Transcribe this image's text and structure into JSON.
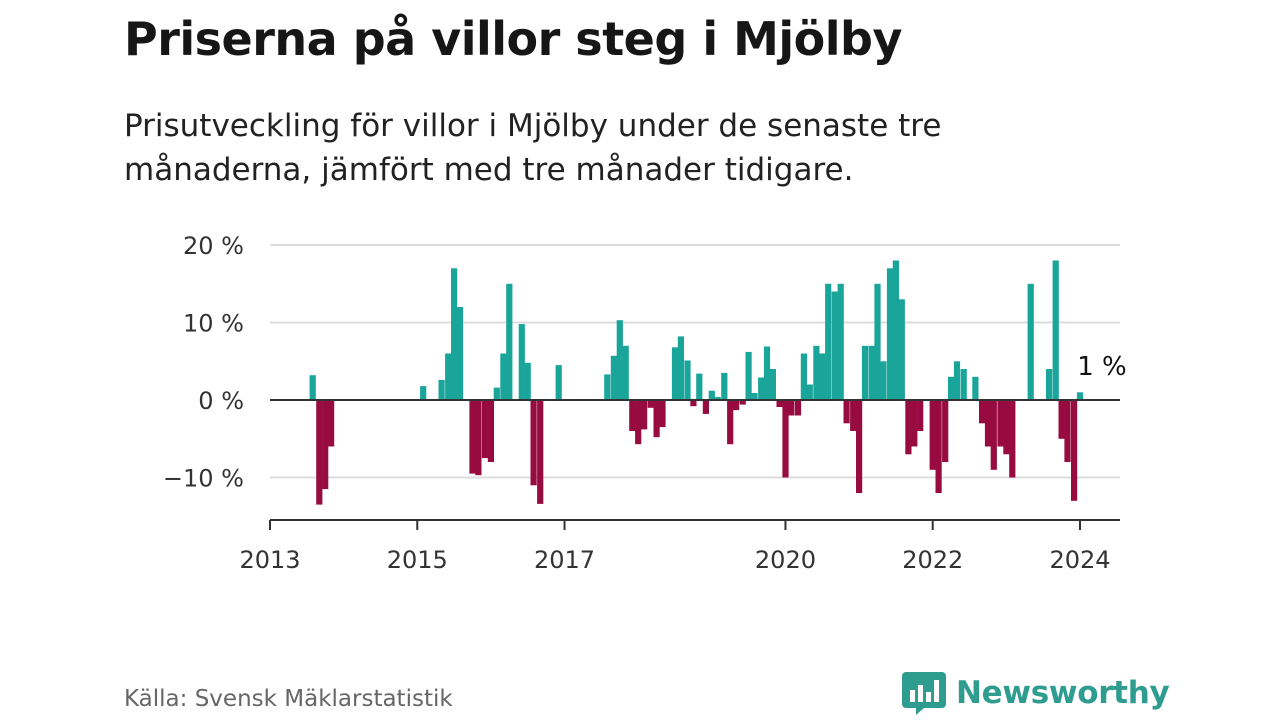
{
  "title": "Priserna på villor steg i Mjölby",
  "subtitle": "Prisutveckling för villor i Mjölby under de senaste tre månaderna, jämfört med tre månader tidigare.",
  "source": "Källa: Svensk Mäklarstatistik",
  "brand": {
    "name": "Newsworthy",
    "logo_icon": "newsworthy-bar-chart-icon"
  },
  "colors": {
    "positive": "#1aa59a",
    "negative": "#980b40",
    "gridline": "#dcdcdc",
    "axis": "#333333",
    "brand": "#2f9c90"
  },
  "chart_data": {
    "type": "bar",
    "title": "Priserna på villor steg i Mjölby",
    "ylabel": "",
    "xlabel": "",
    "ylim": [
      -15,
      20
    ],
    "xlim": [
      2013,
      2024.3
    ],
    "y_ticks": [
      20,
      10,
      0,
      -10
    ],
    "y_tick_labels": [
      "20 %",
      "10 %",
      "0 %",
      "−10 %"
    ],
    "x_ticks": [
      2013,
      2015,
      2017,
      2020,
      2022,
      2024
    ],
    "x_tick_labels": [
      "2013",
      "2015",
      "2017",
      "2020",
      "2022",
      "2024"
    ],
    "annotation": {
      "text": "1 %",
      "x": 2024.0,
      "value": 1
    },
    "bars": [
      {
        "x": 2013.58,
        "value": 3.2
      },
      {
        "x": 2013.67,
        "value": -13.5
      },
      {
        "x": 2013.75,
        "value": -11.5
      },
      {
        "x": 2013.83,
        "value": -6.0
      },
      {
        "x": 2015.08,
        "value": 1.8
      },
      {
        "x": 2015.33,
        "value": 2.6
      },
      {
        "x": 2015.42,
        "value": 6.0
      },
      {
        "x": 2015.5,
        "value": 17.0
      },
      {
        "x": 2015.58,
        "value": 12.0
      },
      {
        "x": 2015.75,
        "value": -9.5
      },
      {
        "x": 2015.83,
        "value": -9.7
      },
      {
        "x": 2015.92,
        "value": -7.5
      },
      {
        "x": 2016.0,
        "value": -8.0
      },
      {
        "x": 2016.08,
        "value": 1.6
      },
      {
        "x": 2016.17,
        "value": 6.0
      },
      {
        "x": 2016.25,
        "value": 15.0
      },
      {
        "x": 2016.42,
        "value": 9.8
      },
      {
        "x": 2016.5,
        "value": 4.8
      },
      {
        "x": 2016.58,
        "value": -11.0
      },
      {
        "x": 2016.67,
        "value": -13.4
      },
      {
        "x": 2016.92,
        "value": 4.5
      },
      {
        "x": 2017.58,
        "value": 3.3
      },
      {
        "x": 2017.67,
        "value": 5.7
      },
      {
        "x": 2017.75,
        "value": 10.3
      },
      {
        "x": 2017.83,
        "value": 7.0
      },
      {
        "x": 2017.92,
        "value": -4.0
      },
      {
        "x": 2018.0,
        "value": -5.7
      },
      {
        "x": 2018.08,
        "value": -3.8
      },
      {
        "x": 2018.17,
        "value": -1.0
      },
      {
        "x": 2018.25,
        "value": -4.8
      },
      {
        "x": 2018.33,
        "value": -3.5
      },
      {
        "x": 2018.5,
        "value": 6.8
      },
      {
        "x": 2018.58,
        "value": 8.2
      },
      {
        "x": 2018.67,
        "value": 5.1
      },
      {
        "x": 2018.75,
        "value": -0.8
      },
      {
        "x": 2018.83,
        "value": 3.4
      },
      {
        "x": 2018.92,
        "value": -1.8
      },
      {
        "x": 2019.0,
        "value": 1.2
      },
      {
        "x": 2019.08,
        "value": 0.4
      },
      {
        "x": 2019.17,
        "value": 3.5
      },
      {
        "x": 2019.25,
        "value": -5.7
      },
      {
        "x": 2019.33,
        "value": -1.3
      },
      {
        "x": 2019.42,
        "value": -0.6
      },
      {
        "x": 2019.5,
        "value": 6.2
      },
      {
        "x": 2019.58,
        "value": 0.9
      },
      {
        "x": 2019.67,
        "value": 2.9
      },
      {
        "x": 2019.75,
        "value": 6.9
      },
      {
        "x": 2019.83,
        "value": 4.0
      },
      {
        "x": 2019.92,
        "value": -0.9
      },
      {
        "x": 2020.0,
        "value": -10.0
      },
      {
        "x": 2020.08,
        "value": -2.0
      },
      {
        "x": 2020.17,
        "value": -2.0
      },
      {
        "x": 2020.25,
        "value": 6.0
      },
      {
        "x": 2020.33,
        "value": 2.0
      },
      {
        "x": 2020.42,
        "value": 7.0
      },
      {
        "x": 2020.5,
        "value": 6.0
      },
      {
        "x": 2020.58,
        "value": 15.0
      },
      {
        "x": 2020.67,
        "value": 14.0
      },
      {
        "x": 2020.75,
        "value": 15.0
      },
      {
        "x": 2020.83,
        "value": -3.0
      },
      {
        "x": 2020.92,
        "value": -4.0
      },
      {
        "x": 2021.0,
        "value": -12.0
      },
      {
        "x": 2021.08,
        "value": 7.0
      },
      {
        "x": 2021.17,
        "value": 7.0
      },
      {
        "x": 2021.25,
        "value": 15.0
      },
      {
        "x": 2021.33,
        "value": 5.0
      },
      {
        "x": 2021.42,
        "value": 17.0
      },
      {
        "x": 2021.5,
        "value": 18.0
      },
      {
        "x": 2021.58,
        "value": 13.0
      },
      {
        "x": 2021.67,
        "value": -7.0
      },
      {
        "x": 2021.75,
        "value": -6.0
      },
      {
        "x": 2021.83,
        "value": -4.0
      },
      {
        "x": 2022.0,
        "value": -9.0
      },
      {
        "x": 2022.08,
        "value": -12.0
      },
      {
        "x": 2022.17,
        "value": -8.0
      },
      {
        "x": 2022.25,
        "value": 3.0
      },
      {
        "x": 2022.33,
        "value": 5.0
      },
      {
        "x": 2022.42,
        "value": 4.0
      },
      {
        "x": 2022.58,
        "value": 3.0
      },
      {
        "x": 2022.67,
        "value": -3.0
      },
      {
        "x": 2022.75,
        "value": -6.0
      },
      {
        "x": 2022.83,
        "value": -9.0
      },
      {
        "x": 2022.92,
        "value": -6.0
      },
      {
        "x": 2023.0,
        "value": -7.0
      },
      {
        "x": 2023.08,
        "value": -10.0
      },
      {
        "x": 2023.33,
        "value": 15.0
      },
      {
        "x": 2023.58,
        "value": 4.0
      },
      {
        "x": 2023.67,
        "value": 18.0
      },
      {
        "x": 2023.75,
        "value": -5.0
      },
      {
        "x": 2023.83,
        "value": -8.0
      },
      {
        "x": 2023.92,
        "value": -13.0
      },
      {
        "x": 2024.0,
        "value": 1.0
      }
    ]
  }
}
